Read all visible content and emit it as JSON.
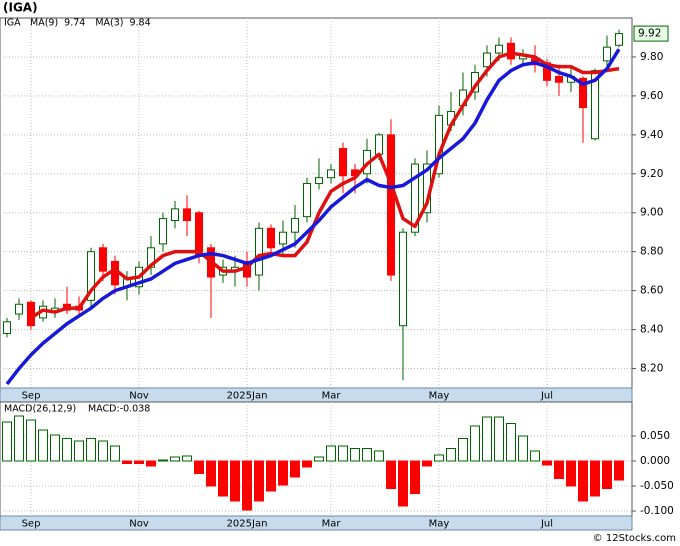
{
  "chart_data": [
    {
      "type": "candlestick",
      "title": "(IGA)",
      "symbol": "IGA",
      "categories": [
        null,
        null,
        "Sep",
        null,
        null,
        null,
        null,
        null,
        null,
        null,
        null,
        "Nov",
        null,
        null,
        null,
        null,
        null,
        null,
        null,
        null,
        "2025Jan",
        null,
        null,
        null,
        null,
        null,
        null,
        "Mar",
        null,
        null,
        null,
        null,
        null,
        null,
        null,
        null,
        "May",
        null,
        null,
        null,
        null,
        null,
        null,
        null,
        null,
        "Jul",
        null,
        null,
        null,
        null,
        null,
        null
      ],
      "open": [
        8.38,
        8.48,
        8.54,
        8.46,
        8.49,
        8.53,
        8.52,
        8.55,
        8.82,
        8.75,
        8.62,
        8.62,
        8.72,
        8.84,
        8.96,
        9.02,
        9.0,
        8.82,
        8.68,
        8.7,
        8.75,
        8.68,
        8.92,
        8.84,
        8.9,
        8.98,
        9.15,
        9.18,
        9.33,
        9.22,
        9.2,
        9.3,
        9.4,
        8.42,
        8.9,
        9.0,
        9.2,
        9.45,
        9.55,
        9.62,
        9.75,
        9.82,
        9.87,
        9.79,
        9.79,
        9.77,
        9.7,
        9.67,
        9.69,
        9.38,
        9.78,
        9.86
      ],
      "high": [
        8.46,
        8.56,
        8.55,
        8.55,
        8.56,
        8.62,
        8.57,
        8.82,
        8.84,
        8.78,
        8.7,
        8.75,
        8.88,
        9.0,
        9.06,
        9.09,
        9.01,
        8.84,
        8.76,
        8.78,
        8.8,
        8.95,
        8.94,
        8.96,
        9.04,
        9.18,
        9.28,
        9.25,
        9.36,
        9.25,
        9.38,
        9.41,
        9.48,
        8.92,
        9.28,
        9.32,
        9.55,
        9.62,
        9.72,
        9.76,
        9.86,
        9.9,
        9.9,
        9.84,
        9.86,
        9.79,
        9.76,
        9.75,
        9.7,
        9.74,
        9.91,
        9.94
      ],
      "low": [
        8.36,
        8.45,
        8.4,
        8.44,
        8.46,
        8.48,
        8.47,
        8.52,
        8.65,
        8.58,
        8.55,
        8.58,
        8.68,
        8.8,
        8.92,
        8.88,
        8.74,
        8.46,
        8.64,
        8.62,
        8.62,
        8.6,
        8.78,
        8.78,
        8.82,
        8.95,
        9.12,
        9.15,
        9.1,
        9.1,
        9.15,
        9.27,
        8.65,
        8.14,
        8.88,
        8.95,
        9.18,
        9.42,
        9.5,
        9.58,
        9.7,
        9.78,
        9.76,
        9.75,
        9.72,
        9.65,
        9.6,
        9.62,
        9.36,
        9.37,
        9.75,
        9.85
      ],
      "close": [
        8.44,
        8.53,
        8.42,
        8.52,
        8.51,
        8.5,
        8.5,
        8.8,
        8.7,
        8.63,
        8.66,
        8.72,
        8.82,
        8.97,
        9.02,
        8.96,
        8.78,
        8.67,
        8.72,
        8.72,
        8.67,
        8.92,
        8.82,
        8.9,
        8.97,
        9.15,
        9.18,
        9.22,
        9.19,
        9.19,
        9.32,
        9.4,
        8.68,
        8.9,
        9.25,
        9.25,
        9.5,
        9.52,
        9.63,
        9.72,
        9.82,
        9.86,
        9.79,
        9.81,
        9.76,
        9.68,
        9.67,
        9.7,
        9.54,
        9.73,
        9.85,
        9.92
      ],
      "up_color": "#006400",
      "down_color": "#ff0000",
      "series": [
        {
          "name": "MA(9)",
          "color": "#e01010",
          "values": [
            null,
            null,
            8.46,
            8.5,
            8.49,
            8.51,
            8.51,
            8.6,
            8.67,
            8.71,
            8.66,
            8.67,
            8.73,
            8.78,
            8.8,
            8.8,
            8.8,
            8.75,
            8.7,
            8.7,
            8.72,
            8.78,
            8.79,
            8.78,
            8.78,
            8.85,
            9.0,
            9.11,
            9.15,
            9.18,
            9.25,
            9.3,
            9.15,
            8.97,
            8.93,
            9.05,
            9.3,
            9.45,
            9.55,
            9.65,
            9.73,
            9.8,
            9.82,
            9.81,
            9.8,
            9.76,
            9.75,
            9.75,
            9.72,
            9.72,
            9.73,
            9.74
          ]
        },
        {
          "name": "MA(3)",
          "color": "#1818d8",
          "values": [
            8.12,
            8.2,
            8.27,
            8.33,
            8.38,
            8.43,
            8.47,
            8.51,
            8.56,
            8.6,
            8.62,
            8.64,
            8.66,
            8.7,
            8.74,
            8.76,
            8.78,
            8.79,
            8.78,
            8.76,
            8.74,
            8.76,
            8.78,
            8.81,
            8.84,
            8.9,
            8.96,
            9.03,
            9.08,
            9.13,
            9.17,
            9.14,
            9.13,
            9.14,
            9.18,
            9.22,
            9.28,
            9.33,
            9.38,
            9.46,
            9.58,
            9.68,
            9.73,
            9.76,
            9.77,
            9.75,
            9.72,
            9.7,
            9.66,
            9.68,
            9.74,
            9.84
          ]
        }
      ],
      "ylim": [
        8.1,
        10.0
      ],
      "yticks": [
        {
          "value": 8.2,
          "label": "8.20"
        },
        {
          "value": 8.4,
          "label": "8.40"
        },
        {
          "value": 8.6,
          "label": "8.60"
        },
        {
          "value": 8.8,
          "label": "8.80"
        },
        {
          "value": 9.0,
          "label": "9.00"
        },
        {
          "value": 9.2,
          "label": "9.20"
        },
        {
          "value": 9.4,
          "label": "9.40"
        },
        {
          "value": 9.6,
          "label": "9.60"
        },
        {
          "value": 9.8,
          "label": "9.80"
        }
      ],
      "grid": true
    },
    {
      "type": "bar",
      "title": "MACD(26,12,9)",
      "series": [
        {
          "name": "MACD:",
          "up_color": "#006400",
          "down_color": "#ff0000",
          "values": [
            0.078,
            0.09,
            0.082,
            0.062,
            0.052,
            0.045,
            0.04,
            0.045,
            0.04,
            0.03,
            -0.005,
            -0.005,
            -0.01,
            0.002,
            0.008,
            0.01,
            -0.025,
            -0.05,
            -0.07,
            -0.08,
            -0.098,
            -0.08,
            -0.06,
            -0.048,
            -0.032,
            -0.012,
            0.008,
            0.03,
            0.03,
            0.025,
            0.025,
            0.02,
            -0.055,
            -0.09,
            -0.065,
            -0.01,
            0.012,
            0.025,
            0.045,
            0.07,
            0.088,
            0.088,
            0.075,
            0.05,
            0.02,
            -0.008,
            -0.035,
            -0.05,
            -0.08,
            -0.07,
            -0.055,
            -0.038
          ]
        }
      ],
      "ylim": [
        -0.11,
        0.118
      ],
      "yticks": [
        {
          "value": -0.1,
          "label": "-0.100"
        },
        {
          "value": -0.05,
          "label": "-0.050"
        },
        {
          "value": 0,
          "label": "0.000"
        },
        {
          "value": 0.05,
          "label": "0.050"
        }
      ],
      "grid": true
    }
  ],
  "footer": "© 12Stocks.com"
}
